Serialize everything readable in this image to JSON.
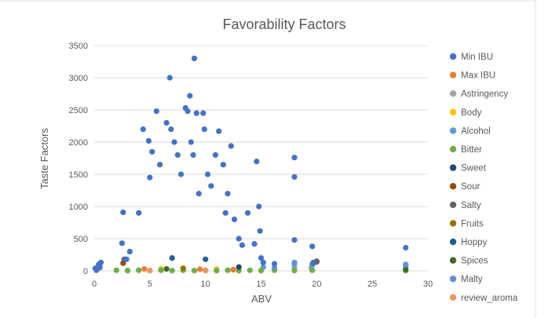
{
  "chart_data": {
    "type": "scatter",
    "title": "Favorability Factors",
    "xlabel": "ABV",
    "ylabel": "Taste  Factors",
    "xlim": [
      0,
      30
    ],
    "ylim": [
      0,
      3500
    ],
    "x_ticks": [
      "0",
      "5",
      "10",
      "15",
      "20",
      "25",
      "30"
    ],
    "y_ticks": [
      "0",
      "500",
      "1000",
      "1500",
      "2000",
      "2500",
      "3000",
      "3500"
    ],
    "grid": "horizontal",
    "legend_position": "right",
    "series": [
      {
        "name": "Min IBU",
        "color": "#4472c4",
        "points": [
          [
            0.1,
            40
          ],
          [
            0.4,
            100
          ],
          [
            0.6,
            130
          ],
          [
            0.2,
            10
          ],
          [
            0.5,
            60
          ],
          [
            2.6,
            910
          ],
          [
            2.5,
            430
          ],
          [
            2.9,
            180
          ],
          [
            3.2,
            300
          ],
          [
            4.0,
            900
          ],
          [
            4.4,
            2200
          ],
          [
            4.9,
            2020
          ],
          [
            5.2,
            1850
          ],
          [
            5.0,
            1450
          ],
          [
            5.6,
            2480
          ],
          [
            5.9,
            1650
          ],
          [
            6.5,
            2300
          ],
          [
            6.8,
            3000
          ],
          [
            6.9,
            2200
          ],
          [
            7.2,
            2000
          ],
          [
            7.5,
            1800
          ],
          [
            7.8,
            1500
          ],
          [
            8.2,
            2530
          ],
          [
            8.4,
            2480
          ],
          [
            8.6,
            2720
          ],
          [
            8.7,
            2000
          ],
          [
            8.9,
            1800
          ],
          [
            9.0,
            3300
          ],
          [
            9.2,
            2450
          ],
          [
            9.4,
            1200
          ],
          [
            9.8,
            2450
          ],
          [
            9.9,
            2200
          ],
          [
            10.2,
            1500
          ],
          [
            10.5,
            1320
          ],
          [
            10.9,
            1800
          ],
          [
            11.2,
            2170
          ],
          [
            11.6,
            1650
          ],
          [
            11.8,
            900
          ],
          [
            12.0,
            1200
          ],
          [
            12.3,
            1940
          ],
          [
            12.6,
            800
          ],
          [
            13.0,
            500
          ],
          [
            13.3,
            400
          ],
          [
            13.8,
            900
          ],
          [
            14.4,
            420
          ],
          [
            14.6,
            1700
          ],
          [
            14.8,
            1000
          ],
          [
            14.9,
            620
          ],
          [
            15.0,
            200
          ],
          [
            15.2,
            130
          ],
          [
            16.2,
            110
          ],
          [
            18.0,
            1760
          ],
          [
            18.0,
            1460
          ],
          [
            18.0,
            480
          ],
          [
            19.6,
            380
          ],
          [
            19.7,
            120
          ],
          [
            28.0,
            360
          ]
        ]
      },
      {
        "name": "Max IBU",
        "color": "#ed7d31",
        "points": [
          [
            4.5,
            30
          ],
          [
            9.5,
            25
          ],
          [
            12.5,
            20
          ]
        ]
      },
      {
        "name": "Astringency",
        "color": "#a5a5a5",
        "points": [
          [
            18.0,
            40
          ],
          [
            19.5,
            45
          ],
          [
            28.0,
            50
          ],
          [
            0.3,
            30
          ]
        ]
      },
      {
        "name": "Body",
        "color": "#ffc000",
        "points": [
          [
            6.0,
            30
          ],
          [
            11.0,
            25
          ]
        ]
      },
      {
        "name": "Alcohol",
        "color": "#5b9bd5",
        "points": [
          [
            18.0,
            100
          ],
          [
            19.6,
            90
          ],
          [
            28.0,
            80
          ],
          [
            15.2,
            60
          ],
          [
            0.3,
            40
          ]
        ]
      },
      {
        "name": "Bitter",
        "color": "#70ad47",
        "points": [
          [
            2.0,
            10
          ],
          [
            3.0,
            5
          ],
          [
            4.0,
            10
          ],
          [
            5.0,
            5
          ],
          [
            6.0,
            10
          ],
          [
            7.0,
            5
          ],
          [
            8.0,
            10
          ],
          [
            9.0,
            5
          ],
          [
            10.0,
            10
          ],
          [
            11.0,
            5
          ],
          [
            12.0,
            10
          ],
          [
            13.0,
            5
          ],
          [
            14.0,
            10
          ],
          [
            15.0,
            5
          ],
          [
            16.2,
            10
          ],
          [
            18.0,
            5
          ],
          [
            19.6,
            10
          ],
          [
            28.0,
            5
          ]
        ]
      },
      {
        "name": "Sweet",
        "color": "#264478",
        "points": [
          [
            20.0,
            140
          ],
          [
            13.0,
            60
          ]
        ]
      },
      {
        "name": "Sour",
        "color": "#9e480e",
        "points": [
          [
            2.6,
            120
          ],
          [
            19.7,
            130
          ]
        ]
      },
      {
        "name": "Salty",
        "color": "#636363",
        "points": [
          [
            2.7,
            180
          ],
          [
            20.0,
            150
          ]
        ]
      },
      {
        "name": "Fruits",
        "color": "#997300",
        "points": [
          [
            8.0,
            40
          ]
        ]
      },
      {
        "name": "Hoppy",
        "color": "#255e91",
        "points": [
          [
            7.0,
            200
          ],
          [
            10.0,
            180
          ]
        ]
      },
      {
        "name": "Spices",
        "color": "#43682b",
        "points": [
          [
            6.5,
            30
          ],
          [
            28.0,
            20
          ]
        ]
      },
      {
        "name": "Malty",
        "color": "#698ed0",
        "points": [
          [
            16.2,
            50
          ],
          [
            18.0,
            130
          ],
          [
            19.6,
            110
          ],
          [
            28.0,
            100
          ],
          [
            0.5,
            50
          ]
        ]
      },
      {
        "name": "review_aroma",
        "color": "#f1975a",
        "points": [
          [
            5.0,
            5
          ],
          [
            10.0,
            5
          ]
        ]
      }
    ]
  }
}
